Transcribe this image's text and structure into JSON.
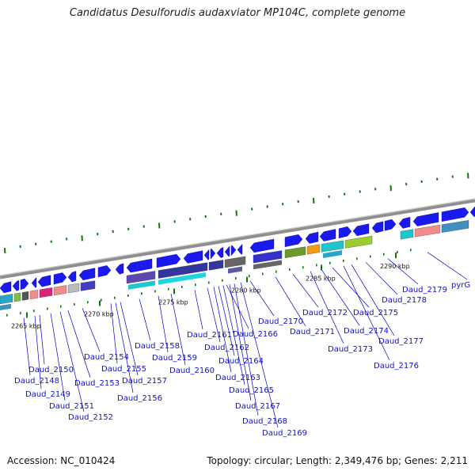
{
  "title": "Candidatus Desulforudis audaxviator MP104C, complete genome",
  "footer": {
    "accession": "Accession: NC_010424",
    "summary": "Topology: circular; Length: 2,349,476 bp; Genes: 2,211"
  },
  "colors": {
    "backbone": "#9a9a9a",
    "gene": "#1a1aee",
    "leader": "#0000cc",
    "tick": "#117711"
  },
  "scale_ticks": [
    {
      "label": "2265 kbp"
    },
    {
      "label": "2270 kbp"
    },
    {
      "label": "2275 kbp"
    },
    {
      "label": "2280 kbp"
    },
    {
      "label": "2285 kbp"
    },
    {
      "label": "2290 kbp"
    }
  ],
  "genes": [
    {
      "label": "Daud_2148"
    },
    {
      "label": "Daud_2149"
    },
    {
      "label": "Daud_2150"
    },
    {
      "label": "Daud_2151"
    },
    {
      "label": "Daud_2152"
    },
    {
      "label": "Daud_2153"
    },
    {
      "label": "Daud_2154"
    },
    {
      "label": "Daud_2155"
    },
    {
      "label": "Daud_2156"
    },
    {
      "label": "Daud_2157"
    },
    {
      "label": "Daud_2158"
    },
    {
      "label": "Daud_2159"
    },
    {
      "label": "Daud_2160"
    },
    {
      "label": "Daud_2161"
    },
    {
      "label": "Daud_2162"
    },
    {
      "label": "Daud_2163"
    },
    {
      "label": "Daud_2164"
    },
    {
      "label": "Daud_2165"
    },
    {
      "label": "Daud_2166"
    },
    {
      "label": "Daud_2167"
    },
    {
      "label": "Daud_2168"
    },
    {
      "label": "Daud_2169"
    },
    {
      "label": "Daud_2170"
    },
    {
      "label": "Daud_2171"
    },
    {
      "label": "Daud_2172"
    },
    {
      "label": "Daud_2173"
    },
    {
      "label": "Daud_2174"
    },
    {
      "label": "Daud_2175"
    },
    {
      "label": "Daud_2176"
    },
    {
      "label": "Daud_2177"
    },
    {
      "label": "Daud_2178"
    },
    {
      "label": "Daud_2179"
    },
    {
      "label": "pyrG"
    }
  ]
}
